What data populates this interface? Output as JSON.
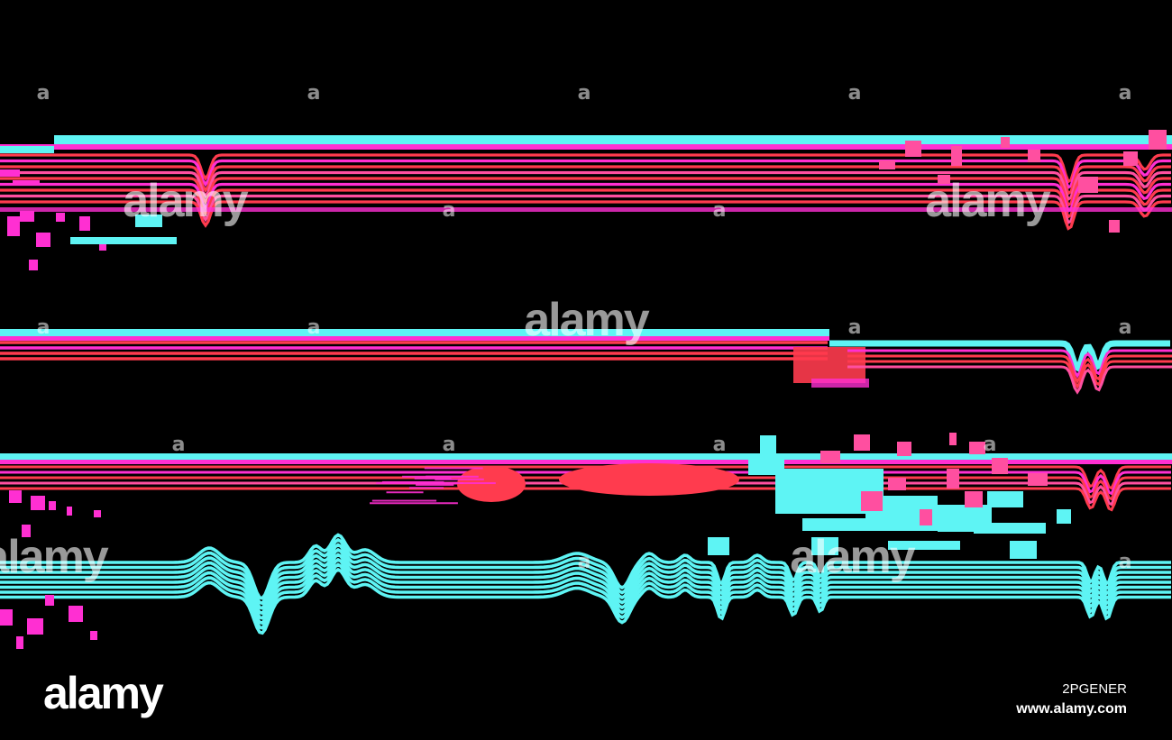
{
  "image": {
    "background_color": "#000000",
    "palette": {
      "cyan": "#5ef4f4",
      "magenta": "#ff2fd2",
      "red": "#ff3b4e",
      "pink": "#ff4fa0"
    }
  },
  "watermark": {
    "small_mark": "a",
    "word": "alamy",
    "logo": "alamy",
    "image_id": "2PGENER",
    "site": "www.alamy.com"
  }
}
